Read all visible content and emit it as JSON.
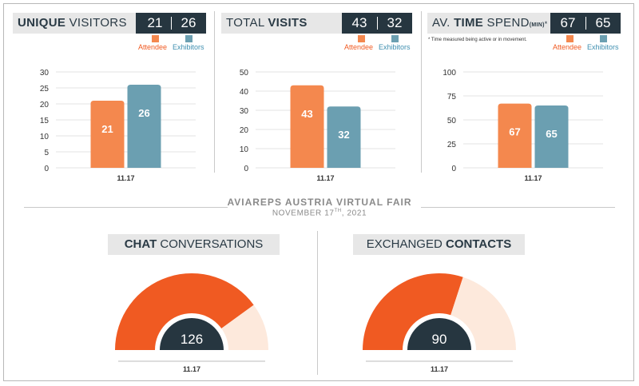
{
  "colors": {
    "attendee": "#f4884e",
    "exhibitor": "#6b9fb1",
    "gauge_primary": "#f05a22",
    "gauge_light": "#fde9dc",
    "dark": "#263640"
  },
  "panels": [
    {
      "title_bold": "UNIQUE",
      "title_rest": " VISITORS",
      "value_a": "21",
      "value_b": "26",
      "legend_a": "Attendee",
      "legend_b": "Exhibitors"
    },
    {
      "title_pre": "TOTAL ",
      "title_bold": "VISITS",
      "value_a": "43",
      "value_b": "32",
      "legend_a": "Attendee",
      "legend_b": "Exhibitors"
    },
    {
      "title_pre": "AV. ",
      "title_bold": "TIME",
      "title_rest": " SPEND",
      "title_unit": "(MIN)",
      "title_star": "*",
      "value_a": "67",
      "value_b": "65",
      "legend_a": "Attendee",
      "legend_b": "Exhibitors",
      "note": "* Time measured being active or in movement."
    }
  ],
  "event": {
    "title": "AVIAREPS AUSTRIA VIRTUAL FAIR",
    "date_pre": "NOVEMBER 17",
    "date_sup": "TH",
    "date_post": ", 2021"
  },
  "gauges": [
    {
      "title_bold": "CHAT",
      "title_rest": " CONVERSATIONS",
      "value": "126",
      "date": "11.17"
    },
    {
      "title_rest": "EXCHANGED ",
      "title_bold": "CONTACTS",
      "value": "90",
      "date": "11.17"
    }
  ],
  "chart_data": [
    {
      "type": "bar",
      "categories": [
        "11.17"
      ],
      "series": [
        {
          "name": "Attendee",
          "values": [
            21
          ]
        },
        {
          "name": "Exhibitors",
          "values": [
            26
          ]
        }
      ],
      "ylim": [
        0,
        30
      ],
      "yticks": [
        0,
        5,
        10,
        15,
        20,
        25,
        30
      ]
    },
    {
      "type": "bar",
      "categories": [
        "11.17"
      ],
      "series": [
        {
          "name": "Attendee",
          "values": [
            43
          ]
        },
        {
          "name": "Exhibitors",
          "values": [
            32
          ]
        }
      ],
      "ylim": [
        0,
        50
      ],
      "yticks": [
        0,
        10,
        20,
        30,
        40,
        50
      ]
    },
    {
      "type": "bar",
      "categories": [
        "11.17"
      ],
      "series": [
        {
          "name": "Attendee",
          "values": [
            67
          ]
        },
        {
          "name": "Exhibitors",
          "values": [
            65
          ]
        }
      ],
      "ylim": [
        0,
        100
      ],
      "yticks": [
        0,
        25,
        50,
        75,
        100
      ]
    },
    {
      "type": "gauge",
      "value": 126,
      "fill_fraction": 0.8,
      "label": "11.17"
    },
    {
      "type": "gauge",
      "value": 90,
      "fill_fraction": 0.6,
      "label": "11.17"
    }
  ]
}
